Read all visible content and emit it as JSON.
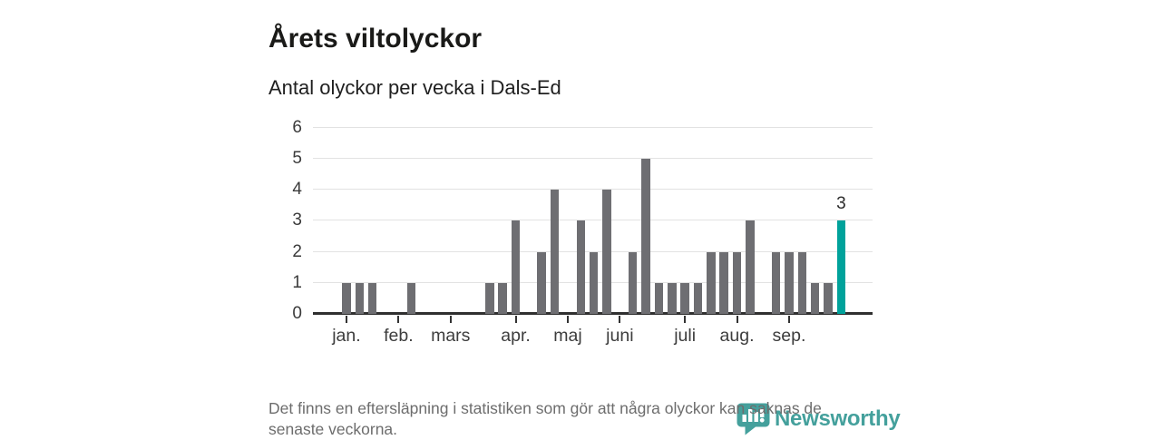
{
  "header": {
    "title": "Årets viltolyckor",
    "subtitle": "Antal olyckor per vecka i Dals-Ed"
  },
  "chart_data": {
    "type": "bar",
    "title": "Årets viltolyckor",
    "subtitle": "Antal olyckor per vecka i Dals-Ed",
    "ylabel": "",
    "xlabel": "",
    "categories_note": "one bar per week, January through September",
    "values": [
      1,
      1,
      1,
      0,
      0,
      1,
      0,
      0,
      0,
      0,
      0,
      1,
      1,
      3,
      0,
      2,
      4,
      0,
      3,
      2,
      4,
      0,
      2,
      5,
      1,
      1,
      1,
      1,
      2,
      2,
      2,
      3,
      0,
      2,
      2,
      2,
      1,
      1,
      3
    ],
    "month_ticks": [
      {
        "label": "jan.",
        "week": 0
      },
      {
        "label": "feb.",
        "week": 4
      },
      {
        "label": "mars",
        "week": 8
      },
      {
        "label": "apr.",
        "week": 13
      },
      {
        "label": "maj",
        "week": 17
      },
      {
        "label": "juni",
        "week": 21
      },
      {
        "label": "juli",
        "week": 26
      },
      {
        "label": "aug.",
        "week": 30
      },
      {
        "label": "sep.",
        "week": 34
      }
    ],
    "yticks": [
      0,
      1,
      2,
      3,
      4,
      5,
      6
    ],
    "ylim": [
      0,
      6
    ],
    "grid": "horizontal",
    "legend": "none",
    "bar_color": "#6e6e72",
    "highlight": {
      "index": 38,
      "value": 3,
      "label": "3",
      "color": "#00a29b"
    }
  },
  "footer": {
    "line1": "Det finns en eftersläpning i statistiken som gör att några olyckor kan saknas de",
    "line2": "senaste veckorna."
  },
  "logo": {
    "text": "Newsworthy",
    "color": "#44a09c",
    "icon": "newsworthy-pin-chart-icon"
  }
}
